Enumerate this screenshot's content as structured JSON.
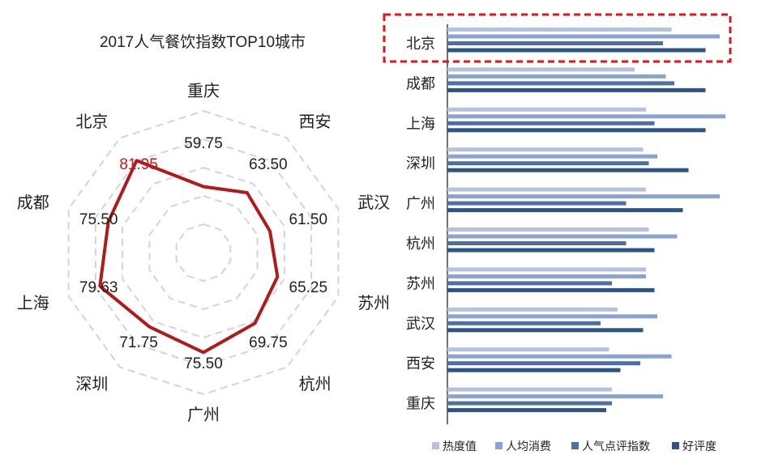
{
  "radar": {
    "title": "2017人气餐饮指数TOP10城市",
    "line_color": "#b01a1a",
    "highlight_color": "#c0191b",
    "cities": [
      {
        "name": "重庆",
        "value": 59.75
      },
      {
        "name": "西安",
        "value": 63.5
      },
      {
        "name": "武汉",
        "value": 61.5
      },
      {
        "name": "苏州",
        "value": 65.25
      },
      {
        "name": "杭州",
        "value": 69.75
      },
      {
        "name": "广州",
        "value": 75.5
      },
      {
        "name": "深圳",
        "value": 71.75
      },
      {
        "name": "上海",
        "value": 79.63
      },
      {
        "name": "成都",
        "value": 75.5
      },
      {
        "name": "北京",
        "value": 81.95
      }
    ],
    "value_labels": [
      "59.75",
      "63.50",
      "61.50",
      "65.25",
      "69.75",
      "75.50",
      "71.75",
      "79.63",
      "75.50",
      "81.95"
    ],
    "highlight_city": "北京"
  },
  "chart_data": [
    {
      "type": "radar",
      "title": "2017人气餐饮指数TOP10城市",
      "categories": [
        "重庆",
        "西安",
        "武汉",
        "苏州",
        "杭州",
        "广州",
        "深圳",
        "上海",
        "成都",
        "北京"
      ],
      "values": [
        59.75,
        63.5,
        61.5,
        65.25,
        69.75,
        75.5,
        71.75,
        79.63,
        75.5,
        81.95
      ],
      "grid": true
    },
    {
      "type": "bar",
      "orientation": "horizontal",
      "categories": [
        "北京",
        "成都",
        "上海",
        "深圳",
        "广州",
        "杭州",
        "苏州",
        "武汉",
        "西安",
        "重庆"
      ],
      "series": [
        {
          "name": "热度值",
          "color": "#b4c2df",
          "values": [
            79,
            66,
            70,
            69,
            70,
            71,
            70,
            60,
            57,
            58
          ]
        },
        {
          "name": "人均消费",
          "color": "#8aa3d1",
          "values": [
            96,
            77,
            98,
            74,
            96,
            81,
            70,
            74,
            79,
            76
          ]
        },
        {
          "name": "人气点评指数",
          "color": "#4d6fa6",
          "values": [
            76,
            80,
            73,
            71,
            63,
            63,
            58,
            54,
            68,
            58
          ]
        },
        {
          "name": "好评度",
          "color": "#2d5484",
          "values": [
            91,
            91,
            91,
            85,
            83,
            73,
            73,
            69,
            61,
            56
          ]
        }
      ],
      "legend_position": "bottom",
      "highlight_category": "北京",
      "highlight_color": "#e0151a"
    }
  ]
}
